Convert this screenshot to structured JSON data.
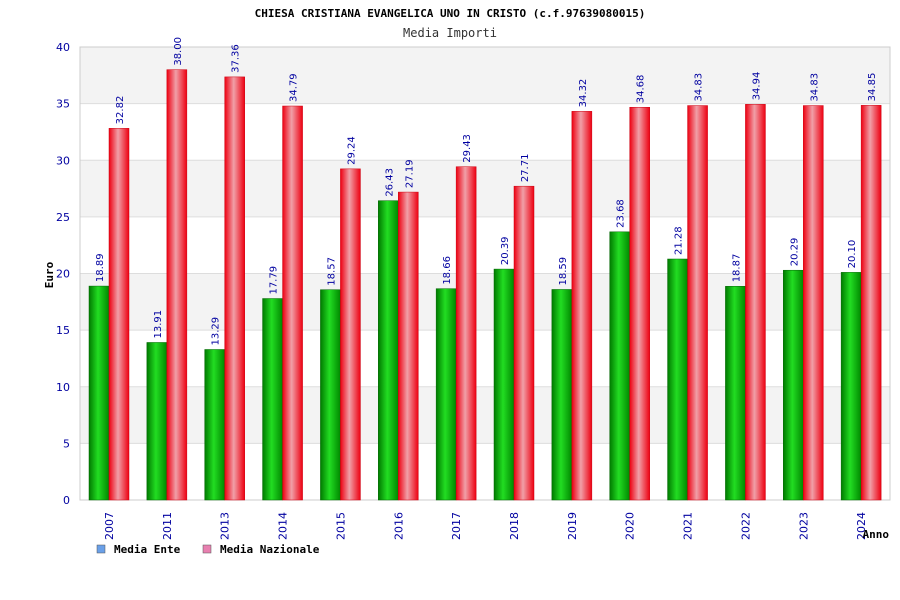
{
  "chart_data": {
    "type": "bar",
    "title": "CHIESA CRISTIANA EVANGELICA UNO IN CRISTO (c.f.97639080015)",
    "subtitle": "Media Importi",
    "ylabel": "Euro",
    "xlabel": "Anno",
    "ylim": [
      0,
      40
    ],
    "yticks": [
      0,
      5,
      10,
      15,
      20,
      25,
      30,
      35,
      40
    ],
    "grid": true,
    "legend_position": "bottom-left",
    "categories": [
      "2007",
      "2011",
      "2013",
      "2014",
      "2015",
      "2016",
      "2017",
      "2018",
      "2019",
      "2020",
      "2021",
      "2022",
      "2023",
      "2024"
    ],
    "series": [
      {
        "name": "Media Ente",
        "color": "#00bb00",
        "legend_swatch": "#6aa0e8",
        "values": [
          18.89,
          13.91,
          13.29,
          17.79,
          18.57,
          26.43,
          18.66,
          20.39,
          18.59,
          23.68,
          21.28,
          18.87,
          20.29,
          20.1
        ],
        "labels": [
          "18.89",
          "13.91",
          "13.29",
          "17.79",
          "18.57",
          "26.43",
          "18.66",
          "20.39",
          "18.59",
          "23.68",
          "21.28",
          "18.87",
          "20.29",
          "20.10"
        ]
      },
      {
        "name": "Media Nazionale",
        "color": "#ee1122",
        "legend_swatch": "#e880b0",
        "values": [
          32.82,
          38.0,
          37.36,
          34.79,
          29.24,
          27.19,
          29.43,
          27.71,
          34.32,
          34.68,
          34.83,
          34.94,
          34.83,
          34.85
        ],
        "labels": [
          "32.82",
          "38.00",
          "37.36",
          "34.79",
          "29.24",
          "27.19",
          "29.43",
          "27.71",
          "34.32",
          "34.68",
          "34.83",
          "34.94",
          "34.83",
          "34.85"
        ]
      }
    ]
  }
}
